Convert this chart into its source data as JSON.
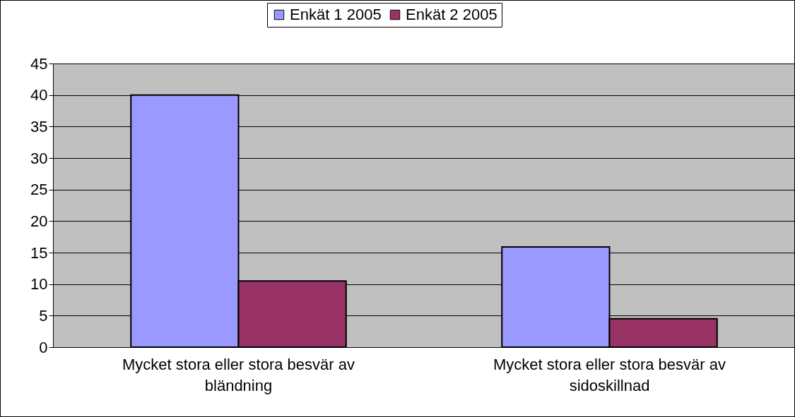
{
  "chart_data": {
    "type": "bar",
    "categories": [
      "Mycket stora eller stora besvär av bländning",
      "Mycket stora eller stora besvär av sidoskillnad"
    ],
    "series": [
      {
        "name": "Enkät 1 2005",
        "color": "#9999ff",
        "values": [
          40,
          15.9
        ]
      },
      {
        "name": "Enkät 2 2005",
        "color": "#993366",
        "values": [
          10.5,
          4.5
        ]
      }
    ],
    "ylim": [
      0,
      45
    ],
    "yticks": [
      0,
      5,
      10,
      15,
      20,
      25,
      30,
      35,
      40,
      45
    ],
    "grid": "y",
    "legend": "top"
  }
}
